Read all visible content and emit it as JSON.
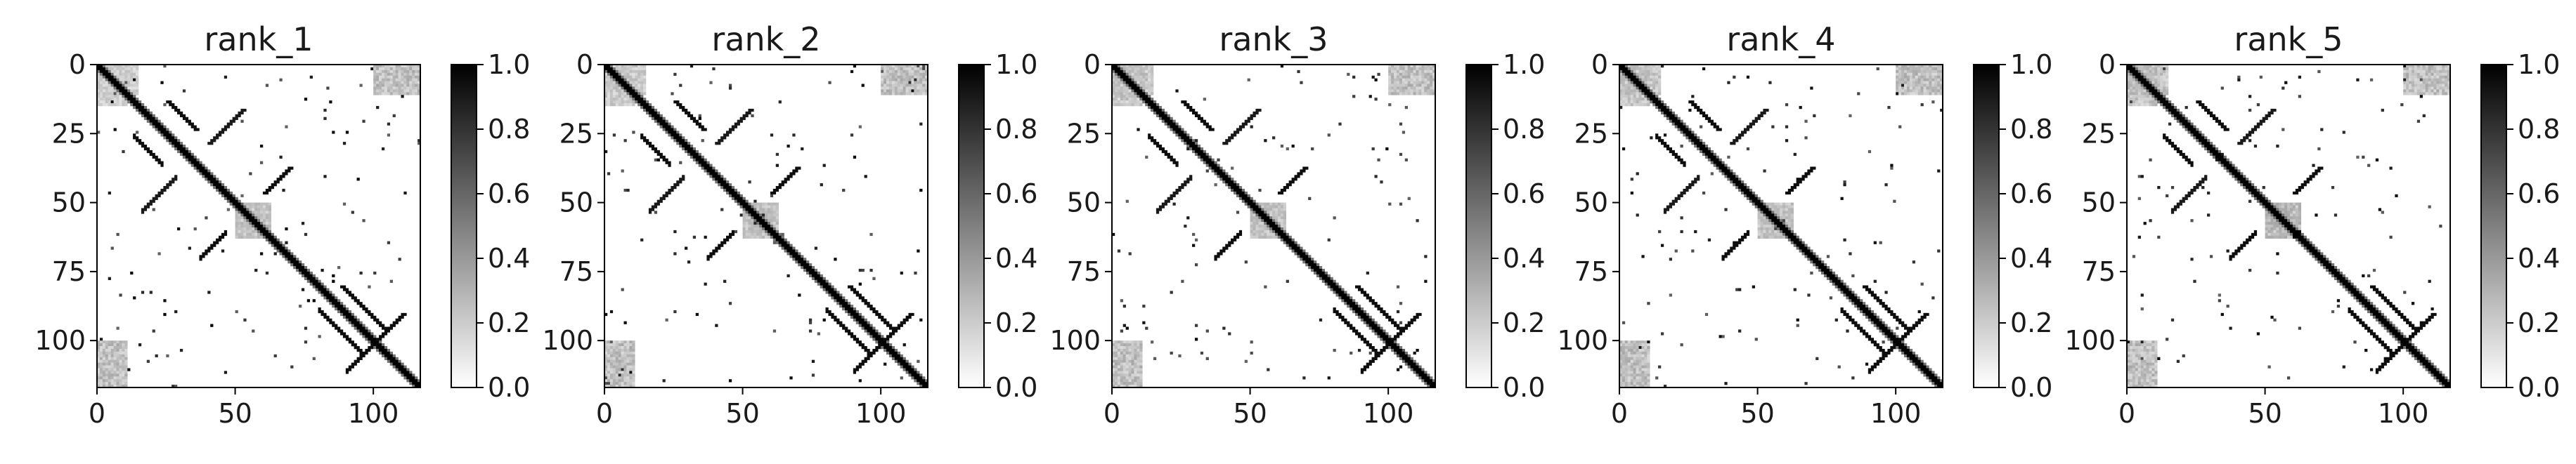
{
  "chart_data": [
    {
      "type": "heatmap",
      "title": "rank_1",
      "xlabel": "",
      "ylabel": "",
      "xlim": [
        0,
        117
      ],
      "ylim": [
        117,
        0
      ],
      "x_ticks": [
        0,
        50,
        100
      ],
      "y_ticks": [
        0,
        25,
        50,
        75,
        100
      ],
      "colormap": "Greys",
      "colorbar": {
        "range": [
          0.0,
          1.0
        ],
        "ticks": [
          "0.0",
          "0.2",
          "0.4",
          "0.6",
          "0.8",
          "1.0"
        ]
      },
      "grid": false,
      "size": 117,
      "pattern": {
        "main_diagonal": [
          [
            0,
            116
          ]
        ],
        "contact_bands": [
          {
            "i": [
              37,
              46
            ],
            "j": [
              60,
              69
            ],
            "value": 0.95
          },
          {
            "i": [
              13,
              23
            ],
            "j": [
              25,
              35
            ],
            "value": 0.95
          },
          {
            "i": [
              16,
              28
            ],
            "j": [
              40,
              52
            ],
            "value": 0.9
          },
          {
            "i": [
              80,
              96
            ],
            "j": [
              88,
              104
            ],
            "value": 0.95
          },
          {
            "i": [
              90,
              100
            ],
            "j": [
              100,
              110
            ],
            "value": 0.95
          },
          {
            "i": [
              100,
              116
            ],
            "j": [
              100,
              116
            ],
            "value": 0.95
          }
        ],
        "faint_blocks": [
          {
            "i": [
              0,
              10
            ],
            "j": [
              0,
              14
            ],
            "value": 0.25
          },
          {
            "i": [
              100,
              116
            ],
            "j": [
              0,
              10
            ],
            "value": 0.35
          },
          {
            "i": [
              50,
              62
            ],
            "j": [
              50,
              62
            ],
            "value": 0.3
          }
        ]
      }
    },
    {
      "type": "heatmap",
      "title": "rank_2",
      "xlabel": "",
      "ylabel": "",
      "xlim": [
        0,
        117
      ],
      "ylim": [
        117,
        0
      ],
      "x_ticks": [
        0,
        50,
        100
      ],
      "y_ticks": [
        0,
        25,
        50,
        75,
        100
      ],
      "colormap": "Greys",
      "colorbar": {
        "range": [
          0.0,
          1.0
        ],
        "ticks": [
          "0.0",
          "0.2",
          "0.4",
          "0.6",
          "0.8",
          "1.0"
        ]
      },
      "grid": false,
      "size": 117,
      "pattern": {
        "main_diagonal": [
          [
            0,
            116
          ]
        ],
        "contact_bands": [
          {
            "i": [
              37,
              46
            ],
            "j": [
              60,
              69
            ],
            "value": 0.95
          },
          {
            "i": [
              13,
              23
            ],
            "j": [
              25,
              35
            ],
            "value": 0.95
          },
          {
            "i": [
              16,
              28
            ],
            "j": [
              40,
              52
            ],
            "value": 0.9
          },
          {
            "i": [
              80,
              96
            ],
            "j": [
              88,
              104
            ],
            "value": 0.95
          },
          {
            "i": [
              90,
              100
            ],
            "j": [
              100,
              110
            ],
            "value": 0.95
          },
          {
            "i": [
              100,
              116
            ],
            "j": [
              100,
              116
            ],
            "value": 0.95
          }
        ],
        "faint_blocks": [
          {
            "i": [
              0,
              10
            ],
            "j": [
              0,
              14
            ],
            "value": 0.28
          },
          {
            "i": [
              100,
              116
            ],
            "j": [
              0,
              10
            ],
            "value": 0.35
          },
          {
            "i": [
              50,
              62
            ],
            "j": [
              50,
              62
            ],
            "value": 0.3
          }
        ]
      }
    },
    {
      "type": "heatmap",
      "title": "rank_3",
      "xlabel": "",
      "ylabel": "",
      "xlim": [
        0,
        117
      ],
      "ylim": [
        117,
        0
      ],
      "x_ticks": [
        0,
        50,
        100
      ],
      "y_ticks": [
        0,
        25,
        50,
        75,
        100
      ],
      "colormap": "Greys",
      "colorbar": {
        "range": [
          0.0,
          1.0
        ],
        "ticks": [
          "0.0",
          "0.2",
          "0.4",
          "0.6",
          "0.8",
          "1.0"
        ]
      },
      "grid": false,
      "size": 117,
      "pattern": {
        "main_diagonal": [
          [
            0,
            116
          ]
        ],
        "contact_bands": [
          {
            "i": [
              37,
              46
            ],
            "j": [
              60,
              69
            ],
            "value": 0.95
          },
          {
            "i": [
              13,
              23
            ],
            "j": [
              25,
              35
            ],
            "value": 0.95
          },
          {
            "i": [
              16,
              28
            ],
            "j": [
              40,
              52
            ],
            "value": 0.9
          },
          {
            "i": [
              80,
              96
            ],
            "j": [
              88,
              104
            ],
            "value": 0.95
          },
          {
            "i": [
              90,
              100
            ],
            "j": [
              100,
              110
            ],
            "value": 0.95
          },
          {
            "i": [
              100,
              116
            ],
            "j": [
              100,
              116
            ],
            "value": 0.95
          }
        ],
        "faint_blocks": [
          {
            "i": [
              0,
              10
            ],
            "j": [
              0,
              14
            ],
            "value": 0.3
          },
          {
            "i": [
              100,
              116
            ],
            "j": [
              0,
              10
            ],
            "value": 0.35
          },
          {
            "i": [
              50,
              62
            ],
            "j": [
              50,
              62
            ],
            "value": 0.3
          }
        ]
      }
    },
    {
      "type": "heatmap",
      "title": "rank_4",
      "xlabel": "",
      "ylabel": "",
      "xlim": [
        0,
        117
      ],
      "ylim": [
        117,
        0
      ],
      "x_ticks": [
        0,
        50,
        100
      ],
      "y_ticks": [
        0,
        25,
        50,
        75,
        100
      ],
      "colormap": "Greys",
      "colorbar": {
        "range": [
          0.0,
          1.0
        ],
        "ticks": [
          "0.0",
          "0.2",
          "0.4",
          "0.6",
          "0.8",
          "1.0"
        ]
      },
      "grid": false,
      "size": 117,
      "pattern": {
        "main_diagonal": [
          [
            0,
            116
          ]
        ],
        "contact_bands": [
          {
            "i": [
              37,
              46
            ],
            "j": [
              60,
              69
            ],
            "value": 0.95
          },
          {
            "i": [
              13,
              23
            ],
            "j": [
              25,
              35
            ],
            "value": 0.95
          },
          {
            "i": [
              16,
              28
            ],
            "j": [
              40,
              52
            ],
            "value": 0.9
          },
          {
            "i": [
              80,
              96
            ],
            "j": [
              88,
              104
            ],
            "value": 0.95
          },
          {
            "i": [
              90,
              100
            ],
            "j": [
              100,
              110
            ],
            "value": 0.95
          },
          {
            "i": [
              100,
              116
            ],
            "j": [
              100,
              116
            ],
            "value": 0.95
          }
        ],
        "faint_blocks": [
          {
            "i": [
              0,
              10
            ],
            "j": [
              0,
              14
            ],
            "value": 0.3
          },
          {
            "i": [
              100,
              116
            ],
            "j": [
              0,
              10
            ],
            "value": 0.35
          },
          {
            "i": [
              50,
              62
            ],
            "j": [
              50,
              62
            ],
            "value": 0.3
          }
        ]
      }
    },
    {
      "type": "heatmap",
      "title": "rank_5",
      "xlabel": "",
      "ylabel": "",
      "xlim": [
        0,
        117
      ],
      "ylim": [
        117,
        0
      ],
      "x_ticks": [
        0,
        50,
        100
      ],
      "y_ticks": [
        0,
        25,
        50,
        75,
        100
      ],
      "colormap": "Greys",
      "colorbar": {
        "range": [
          0.0,
          1.0
        ],
        "ticks": [
          "0.0",
          "0.2",
          "0.4",
          "0.6",
          "0.8",
          "1.0"
        ]
      },
      "grid": false,
      "size": 117,
      "pattern": {
        "main_diagonal": [
          [
            0,
            116
          ]
        ],
        "contact_bands": [
          {
            "i": [
              37,
              46
            ],
            "j": [
              60,
              69
            ],
            "value": 0.95
          },
          {
            "i": [
              13,
              23
            ],
            "j": [
              25,
              35
            ],
            "value": 0.95
          },
          {
            "i": [
              16,
              28
            ],
            "j": [
              40,
              52
            ],
            "value": 0.9
          },
          {
            "i": [
              80,
              96
            ],
            "j": [
              88,
              104
            ],
            "value": 0.95
          },
          {
            "i": [
              90,
              100
            ],
            "j": [
              100,
              110
            ],
            "value": 0.95
          },
          {
            "i": [
              100,
              116
            ],
            "j": [
              100,
              116
            ],
            "value": 0.95
          }
        ],
        "faint_blocks": [
          {
            "i": [
              0,
              10
            ],
            "j": [
              0,
              14
            ],
            "value": 0.32
          },
          {
            "i": [
              100,
              116
            ],
            "j": [
              0,
              10
            ],
            "value": 0.35
          },
          {
            "i": [
              50,
              62
            ],
            "j": [
              50,
              62
            ],
            "value": 0.35
          }
        ]
      }
    }
  ]
}
